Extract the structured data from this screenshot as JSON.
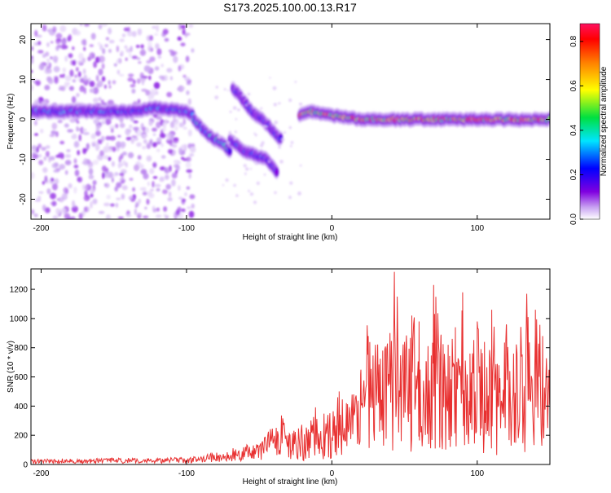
{
  "title": "S173.2025.100.00.13.R17",
  "chart_data": [
    {
      "type": "heatmap",
      "xlabel": "Height of straight line (km)",
      "ylabel": "Frequency (Hz)",
      "xlim": [
        -207,
        150
      ],
      "ylim": [
        -25,
        24
      ],
      "xticks": [
        -200,
        -100,
        0,
        100
      ],
      "yticks": [
        -20,
        -10,
        0,
        10,
        20
      ],
      "colorbar": {
        "label": "Normalized spectral amplitude",
        "range": [
          0,
          0.88
        ],
        "ticks": [
          0.0,
          0.2,
          0.4,
          0.6,
          0.8
        ],
        "colormap": [
          "#ffffff",
          "#c9a4f2",
          "#8000e0",
          "#0000ff",
          "#00e5ff",
          "#00e040",
          "#ffff00",
          "#ff8000",
          "#ff0000",
          "#ff1060"
        ]
      },
      "features": [
        {
          "name": "main-band",
          "x": [
            -207,
            -140,
            -120,
            -100,
            -95
          ],
          "y": [
            2,
            2,
            3,
            2,
            1
          ],
          "amplitude": 0.35
        },
        {
          "name": "main-band",
          "x": [
            -22,
            -15,
            0,
            20,
            50,
            70,
            100,
            150
          ],
          "y": [
            1,
            2,
            1,
            0,
            0,
            0,
            0,
            0
          ],
          "amplitude": 0.75
        },
        {
          "name": "descending-branch",
          "x": [
            -95,
            -85,
            -75,
            -70
          ],
          "y": [
            0,
            -4,
            -6,
            -8
          ],
          "amplitude": 0.4
        },
        {
          "name": "descending-branch",
          "x": [
            -70,
            -60,
            -45,
            -38
          ],
          "y": [
            -5,
            -8,
            -10,
            -13
          ],
          "amplitude": 0.3
        },
        {
          "name": "ascending-branch",
          "x": [
            -68,
            -55,
            -45,
            -35
          ],
          "y": [
            8,
            2,
            -1,
            -5
          ],
          "amplitude": 0.3
        },
        {
          "name": "noise-region",
          "x": [
            -207,
            -95
          ],
          "y": [
            -25,
            24
          ],
          "amplitude": 0.12
        }
      ]
    },
    {
      "type": "line",
      "xlabel": "Height of straight line (km)",
      "ylabel": "SNR (10 * v/v)",
      "xlim": [
        -207,
        150
      ],
      "ylim": [
        0,
        1340
      ],
      "xticks": [
        -200,
        -100,
        0,
        100
      ],
      "yticks": [
        0,
        200,
        400,
        600,
        800,
        1000,
        1200
      ],
      "color": "#e83030",
      "series": [
        {
          "x": [
            -207,
            -190,
            -170,
            -150,
            -130,
            -110,
            -100,
            -90,
            -80,
            -70,
            -60,
            -50,
            -40,
            -35,
            -30,
            -25,
            -20,
            -15,
            -10,
            -5,
            0,
            5,
            10,
            15,
            20,
            25,
            30,
            35,
            40,
            43,
            45,
            50,
            55,
            60,
            65,
            70,
            75,
            80,
            85,
            90,
            95,
            100,
            105,
            110,
            115,
            120,
            125,
            130,
            135,
            140,
            145,
            150
          ],
          "y": [
            25,
            30,
            30,
            35,
            30,
            35,
            35,
            45,
            70,
            80,
            100,
            110,
            220,
            280,
            260,
            320,
            270,
            300,
            420,
            360,
            380,
            500,
            420,
            480,
            650,
            880,
            820,
            780,
            900,
            1320,
            1150,
            840,
            1020,
            980,
            700,
            1230,
            880,
            820,
            940,
            1180,
            760,
            980,
            840,
            1060,
            680,
            960,
            760,
            940,
            1010,
            1060,
            880,
            720
          ]
        }
      ]
    }
  ]
}
